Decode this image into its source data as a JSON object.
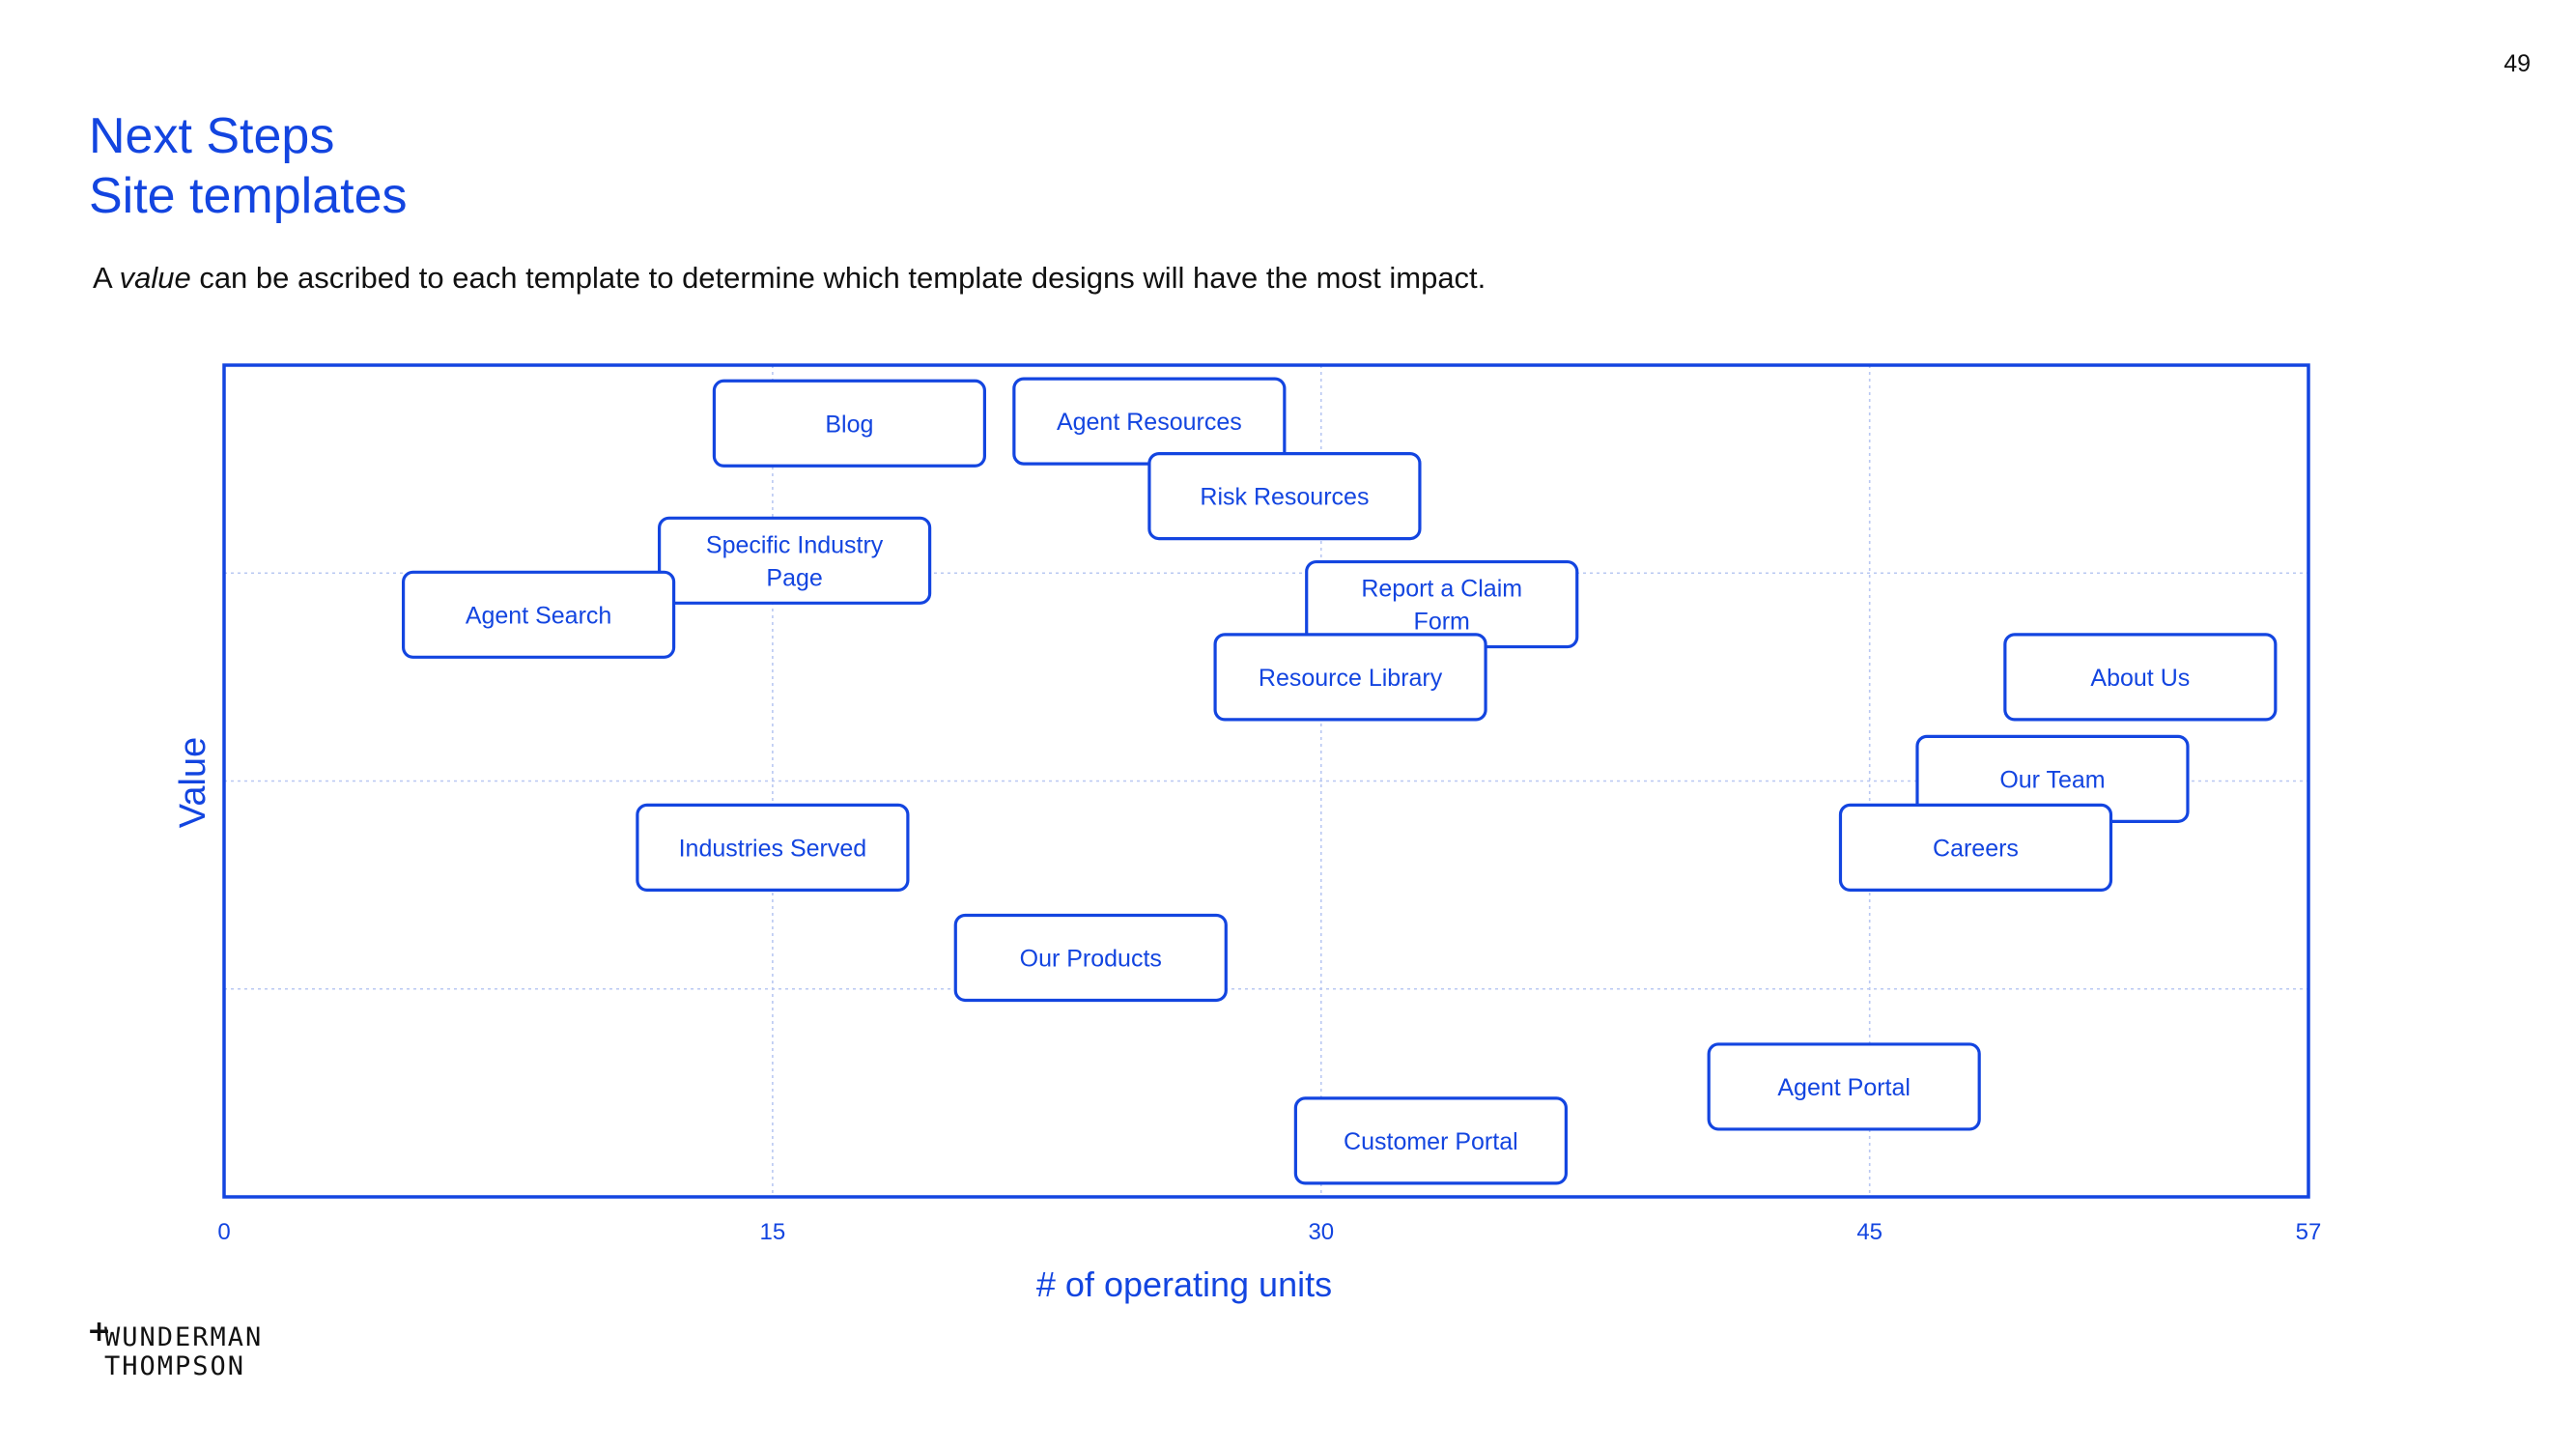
{
  "page": {
    "number": "49"
  },
  "header": {
    "title_line1": "Next Steps",
    "title_line2": "Site templates",
    "intro_before": "A ",
    "intro_emphasis": "value",
    "intro_after": " can be ascribed to each template to determine which template designs will have the most impact."
  },
  "colors": {
    "accent": "#1345e0",
    "grid": "#b9c8f2",
    "text": "#111111"
  },
  "logo": {
    "line1": "WUNDERMAN",
    "line2": "THOMPSON",
    "mark": "+"
  },
  "chart_data": {
    "type": "scatter",
    "title": "",
    "xlabel": "# of operating units",
    "ylabel": "Value",
    "xlim": [
      0,
      57
    ],
    "ylim": [
      0,
      4
    ],
    "x_ticks": [
      0,
      15,
      30,
      45,
      57
    ],
    "y_gridlines": [
      1,
      2,
      3
    ],
    "grid": true,
    "legend": "none",
    "points": [
      {
        "label": "Blog",
        "x": 17.1,
        "y": 3.72
      },
      {
        "label": "Agent Resources",
        "x": 25.3,
        "y": 3.73
      },
      {
        "label": "Risk Resources",
        "x": 29.0,
        "y": 3.37
      },
      {
        "label": "Specific Industry Page",
        "x": 15.6,
        "y": 3.06
      },
      {
        "label": "Agent Search",
        "x": 8.6,
        "y": 2.8
      },
      {
        "label": "Report a Claim Form",
        "x": 33.3,
        "y": 2.85
      },
      {
        "label": "Resource Library",
        "x": 30.8,
        "y": 2.5
      },
      {
        "label": "About Us",
        "x": 52.4,
        "y": 2.5
      },
      {
        "label": "Our Team",
        "x": 50.0,
        "y": 2.01
      },
      {
        "label": "Industries Served",
        "x": 15.0,
        "y": 1.68
      },
      {
        "label": "Careers",
        "x": 47.9,
        "y": 1.68
      },
      {
        "label": "Our Products",
        "x": 23.7,
        "y": 1.15
      },
      {
        "label": "Agent Portal",
        "x": 44.3,
        "y": 0.53
      },
      {
        "label": "Customer Portal",
        "x": 33.0,
        "y": 0.27
      }
    ]
  }
}
